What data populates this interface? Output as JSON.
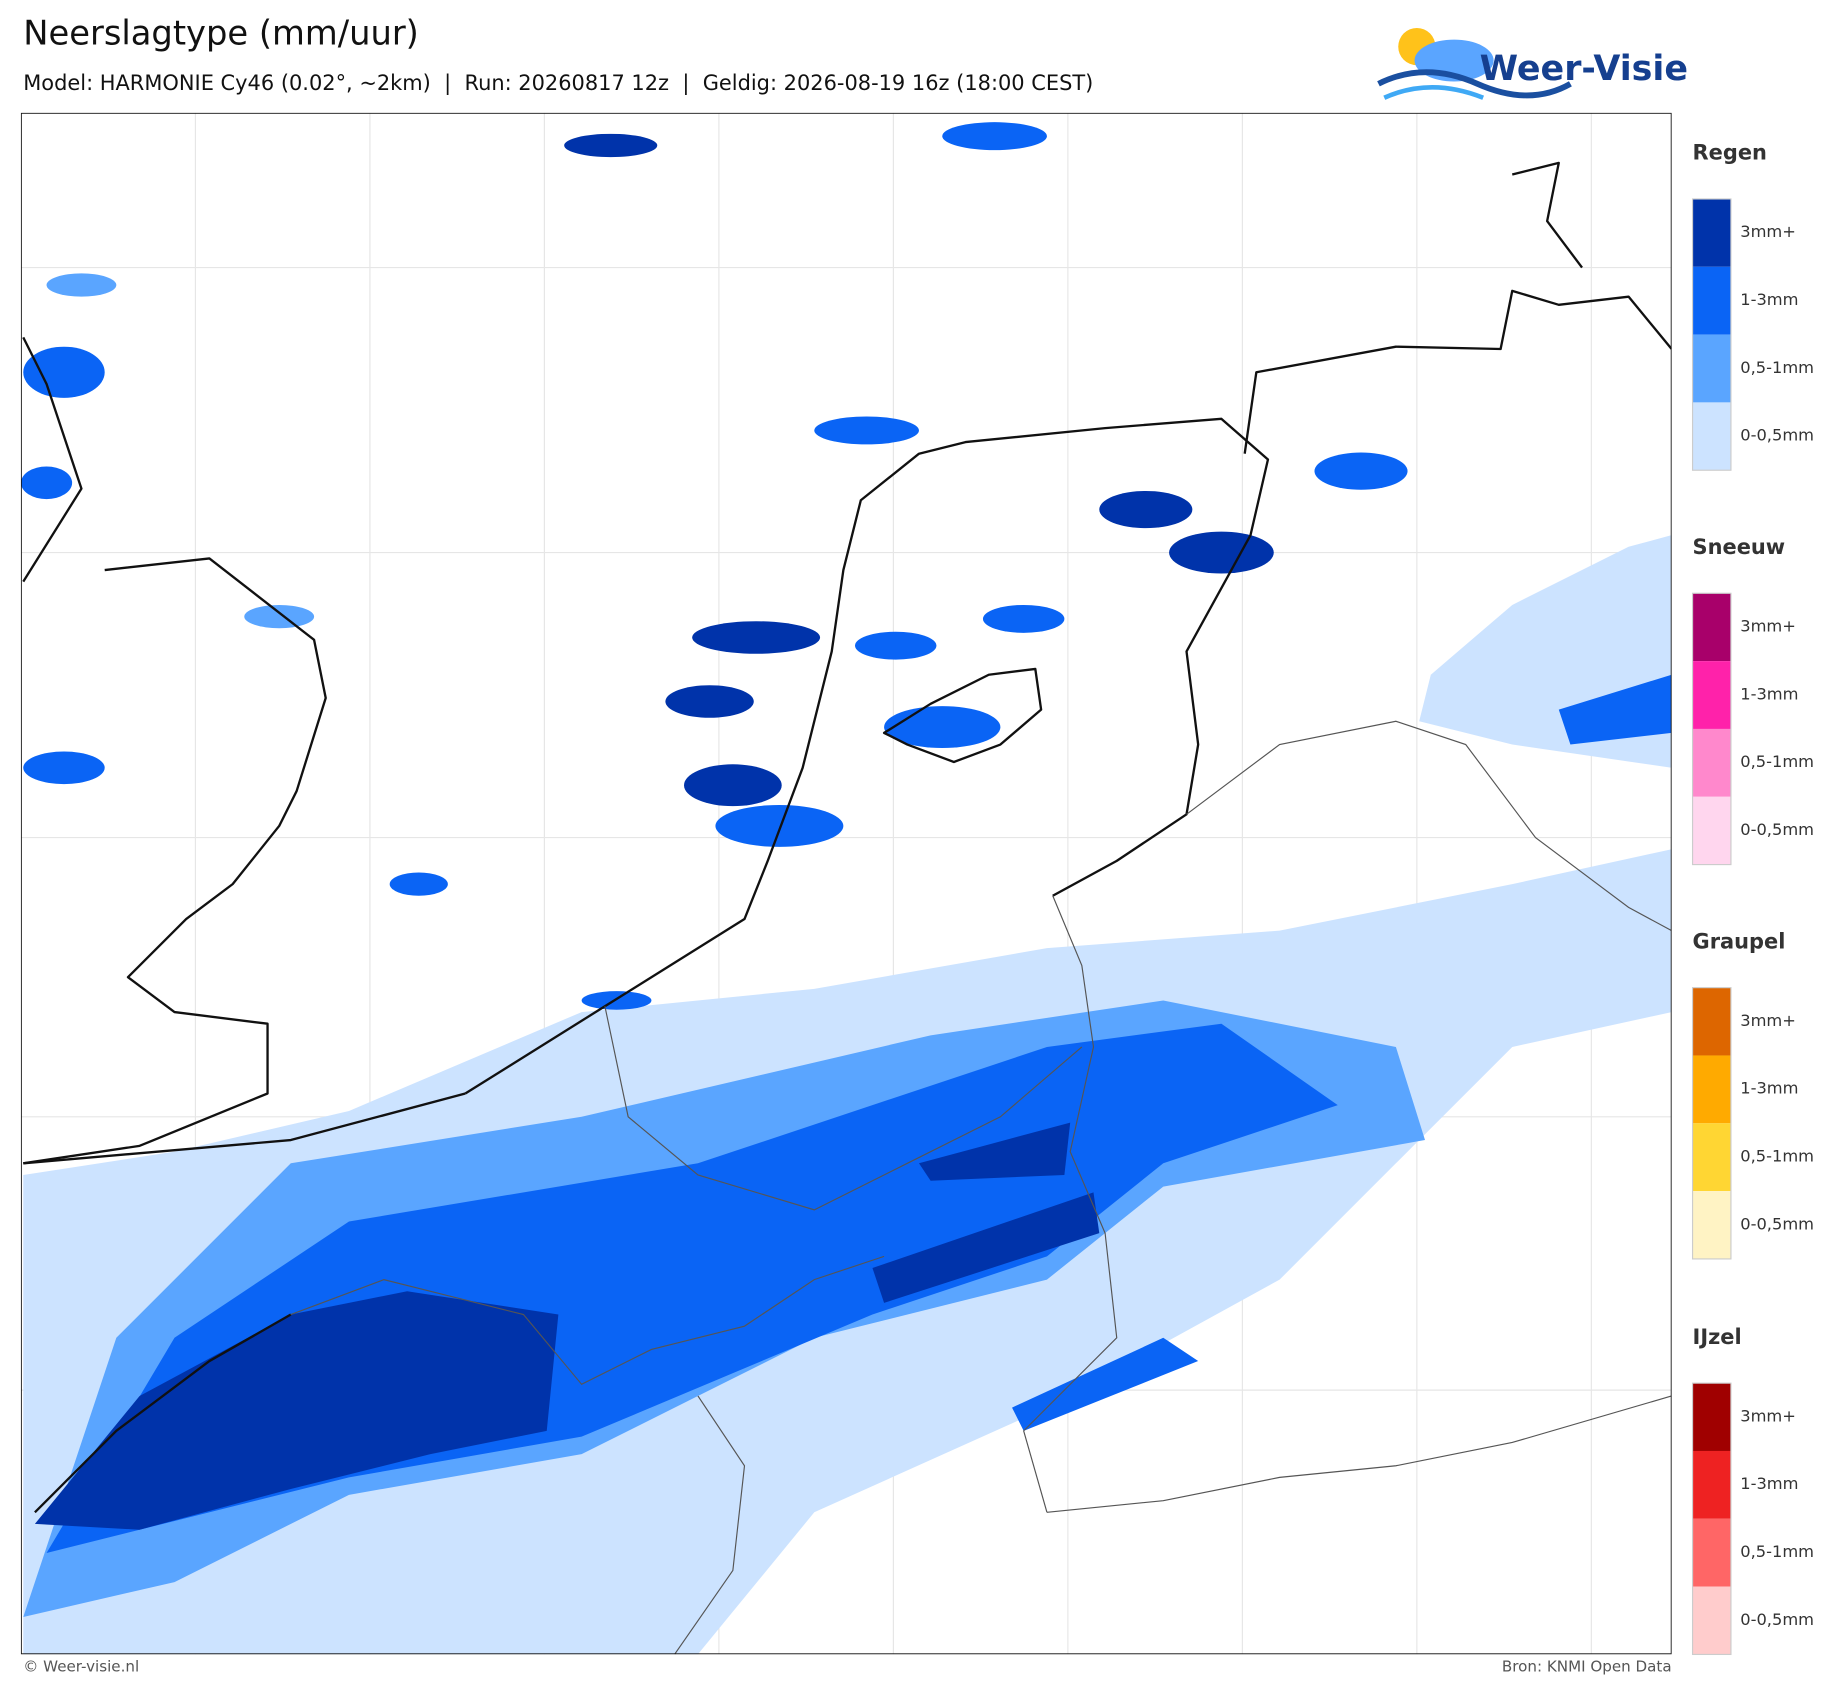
{
  "header": {
    "title": "Neerslagtype (mm/uur)",
    "subtitle": "Model: HARMONIE Cy46 (0.02°, ~2km)  |  Run: 20260817 12z  |  Geldig: 2026-08-19 16z (18:00 CEST)"
  },
  "logo": {
    "text": "Weer-Visie"
  },
  "legend": [
    {
      "title": "Regen",
      "items": [
        {
          "label": "3mm+",
          "color": "#0033aa"
        },
        {
          "label": "1-3mm",
          "color": "#0a64f5"
        },
        {
          "label": "0,5-1mm",
          "color": "#5aa5ff"
        },
        {
          "label": "0-0,5mm",
          "color": "#cce3ff"
        }
      ]
    },
    {
      "title": "Sneeuw",
      "items": [
        {
          "label": "3mm+",
          "color": "#a8006a"
        },
        {
          "label": "1-3mm",
          "color": "#ff22aa"
        },
        {
          "label": "0,5-1mm",
          "color": "#ff88cc"
        },
        {
          "label": "0-0,5mm",
          "color": "#ffd6ee"
        }
      ]
    },
    {
      "title": "Graupel",
      "items": [
        {
          "label": "3mm+",
          "color": "#dd6600"
        },
        {
          "label": "1-3mm",
          "color": "#ffaa00"
        },
        {
          "label": "0,5-1mm",
          "color": "#ffd633"
        },
        {
          "label": "0-0,5mm",
          "color": "#fff3c4"
        }
      ]
    },
    {
      "title": "IJzel",
      "items": [
        {
          "label": "3mm+",
          "color": "#a00000"
        },
        {
          "label": "1-3mm",
          "color": "#ee2222"
        },
        {
          "label": "0,5-1mm",
          "color": "#ff6666"
        },
        {
          "label": "0-0,5mm",
          "color": "#ffcccc"
        }
      ]
    }
  ],
  "footer": {
    "copyright": "© Weer-visie.nl",
    "source": "Bron: KNMI Open Data"
  }
}
